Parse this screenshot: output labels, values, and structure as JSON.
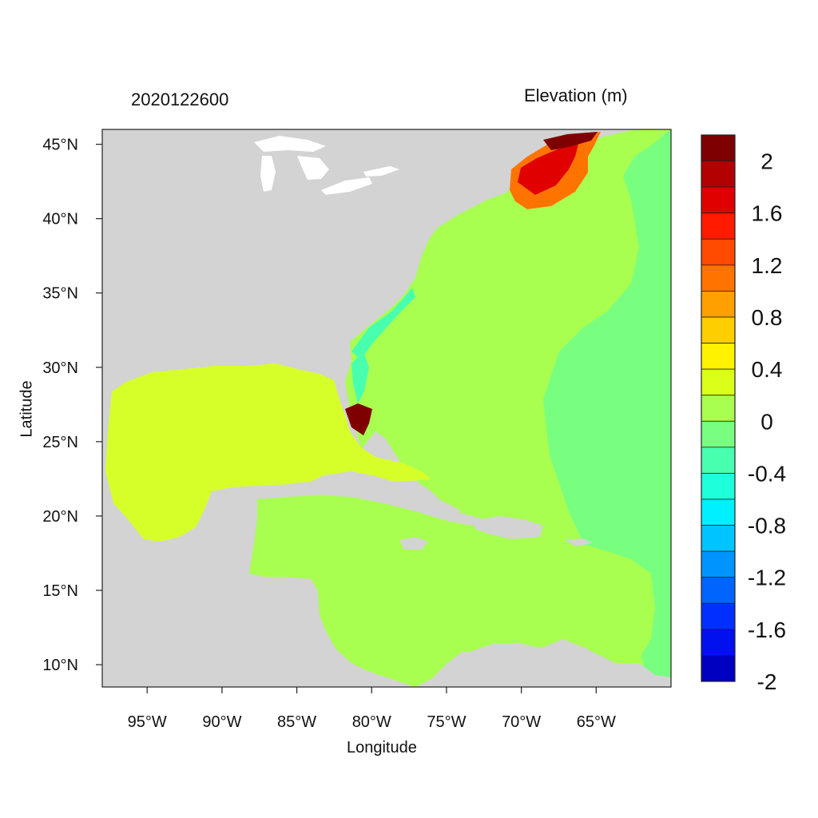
{
  "header": {
    "date_label": "2020122600",
    "variable_label": "Elevation (m)"
  },
  "axes": {
    "x_title": "Longitude",
    "y_title": "Latitude",
    "lon_range": [
      -98,
      -60
    ],
    "lat_range": [
      8.5,
      46
    ],
    "x_ticks": [
      {
        "value": -95,
        "label": "95°W"
      },
      {
        "value": -90,
        "label": "90°W"
      },
      {
        "value": -85,
        "label": "85°W"
      },
      {
        "value": -80,
        "label": "80°W"
      },
      {
        "value": -75,
        "label": "75°W"
      },
      {
        "value": -70,
        "label": "70°W"
      },
      {
        "value": -65,
        "label": "65°W"
      }
    ],
    "y_ticks": [
      {
        "value": 45,
        "label": "45°N"
      },
      {
        "value": 40,
        "label": "40°N"
      },
      {
        "value": 35,
        "label": "35°N"
      },
      {
        "value": 30,
        "label": "30°N"
      },
      {
        "value": 25,
        "label": "25°N"
      },
      {
        "value": 20,
        "label": "20°N"
      },
      {
        "value": 15,
        "label": "15°N"
      },
      {
        "value": 10,
        "label": "10°N"
      }
    ]
  },
  "colorbar": {
    "colors": [
      "#7f0000",
      "#b30000",
      "#e00000",
      "#ff1a00",
      "#ff4a00",
      "#ff7400",
      "#ff9f00",
      "#ffce00",
      "#fff200",
      "#dcff1a",
      "#a8ff50",
      "#78ff80",
      "#48ffb0",
      "#1effdc",
      "#00f0ff",
      "#00c4ff",
      "#0094ff",
      "#0064ff",
      "#0030ff",
      "#0010ef",
      "#0000c0"
    ],
    "labels": [
      "2",
      "1.6",
      "1.2",
      "0.8",
      "0.4",
      "0",
      "-0.4",
      "-0.8",
      "-1.2",
      "-1.6",
      "-2"
    ]
  },
  "colors": {
    "land": "#d3d3d3",
    "gulf": "#d6ff2a",
    "caribbean": "#a8ff50",
    "atlantic_open": "#78ff80",
    "shelf_cyan": "#48ffb0",
    "surge_max": "#7f0000",
    "great_lakes": "#ffffff"
  }
}
